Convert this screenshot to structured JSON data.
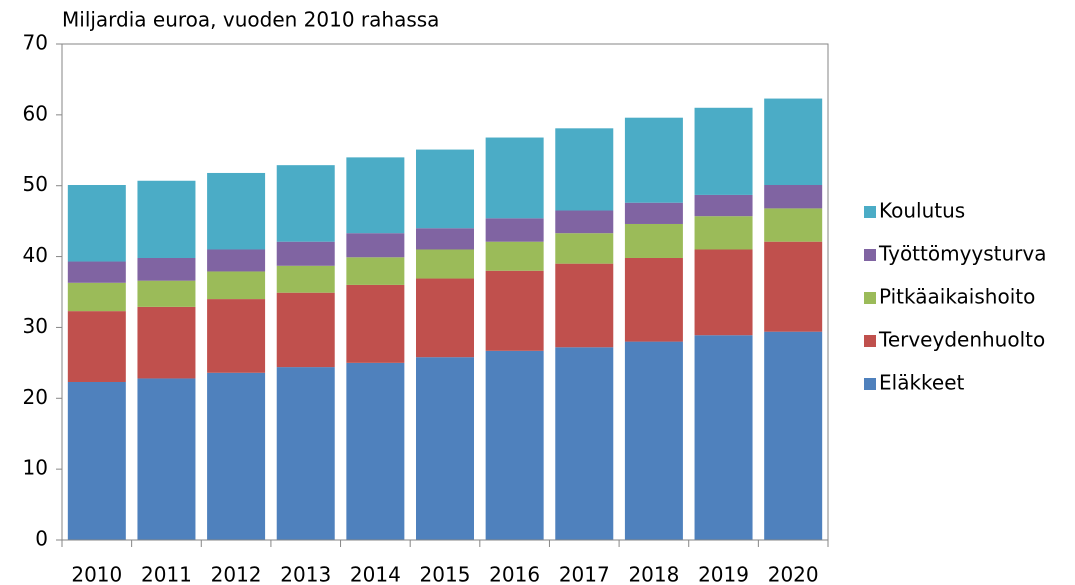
{
  "chart_data": {
    "type": "stacked_bar",
    "title": "Miljardia euroa, vuoden 2010 rahassa",
    "categories": [
      "2010",
      "2011",
      "2012",
      "2013",
      "2014",
      "2015",
      "2016",
      "2017",
      "2018",
      "2019",
      "2020"
    ],
    "series": [
      {
        "name": "Eläkkeet",
        "color": "#4f81bd",
        "values": [
          22.3,
          22.8,
          23.6,
          24.4,
          25.0,
          25.8,
          26.7,
          27.2,
          28.0,
          28.9,
          29.4
        ]
      },
      {
        "name": "Terveydenhuolto",
        "color": "#c0504d",
        "values": [
          10.0,
          10.1,
          10.4,
          10.5,
          11.0,
          11.1,
          11.3,
          11.8,
          11.8,
          12.1,
          12.7
        ]
      },
      {
        "name": "Pitkäaikaishoito",
        "color": "#9bbb59",
        "values": [
          4.0,
          3.7,
          3.9,
          3.8,
          3.9,
          4.1,
          4.1,
          4.3,
          4.8,
          4.7,
          4.7
        ]
      },
      {
        "name": "Työttömyysturva",
        "color": "#8064a2",
        "values": [
          3.0,
          3.2,
          3.1,
          3.4,
          3.4,
          3.0,
          3.3,
          3.2,
          3.0,
          3.0,
          3.3
        ]
      },
      {
        "name": "Koulutus",
        "color": "#4bacc6",
        "values": [
          10.8,
          10.9,
          10.8,
          10.8,
          10.7,
          11.1,
          11.4,
          11.6,
          12.0,
          12.3,
          12.2
        ]
      }
    ],
    "ylim": [
      0,
      70
    ],
    "yticks": [
      0,
      10,
      20,
      30,
      40,
      50,
      60,
      70
    ],
    "grid": false,
    "legend": "right"
  }
}
